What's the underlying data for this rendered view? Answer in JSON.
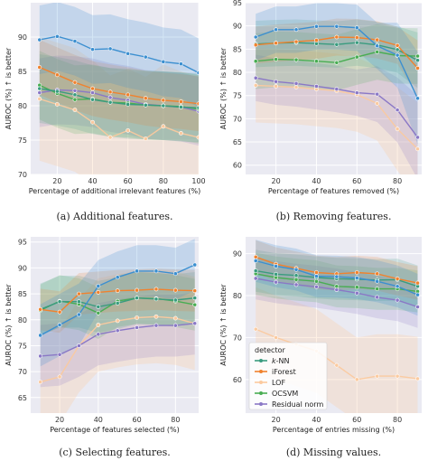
{
  "chart_data": [
    {
      "id": "a",
      "type": "line",
      "caption": "(a) Additional features.",
      "xlabel": "Percentage of additional irrelevant features (%)",
      "ylabel": "AUROC (%) ↑ is better",
      "xlim": [
        5,
        100
      ],
      "ylim": [
        70,
        95
      ],
      "xticks": [
        20,
        40,
        60,
        80,
        100
      ],
      "yticks": [
        70,
        75,
        80,
        85,
        90
      ],
      "grid": true,
      "x": [
        10,
        20,
        30,
        40,
        50,
        60,
        70,
        80,
        90,
        100
      ],
      "series": [
        {
          "key": "knn",
          "values": [
            82.5,
            82.1,
            81.6,
            80.9,
            80.5,
            80.2,
            80.1,
            80.0,
            79.8,
            79.7
          ],
          "band": [
            5,
            5,
            5,
            5,
            5,
            5,
            5,
            5,
            5,
            5
          ]
        },
        {
          "key": "iforest",
          "values": [
            85.6,
            84.5,
            83.4,
            82.5,
            82.0,
            81.6,
            81.1,
            80.8,
            80.6,
            80.3
          ],
          "band": [
            4,
            4,
            4,
            4,
            4,
            4,
            4,
            4,
            4,
            4
          ]
        },
        {
          "key": "lof",
          "values": [
            81.0,
            80.2,
            79.4,
            77.6,
            75.4,
            76.4,
            75.2,
            77.0,
            76.0,
            75.4
          ],
          "band": [
            9,
            9,
            9,
            9,
            9,
            9,
            9,
            9,
            9,
            9
          ]
        },
        {
          "key": "ocsvm",
          "values": [
            83.0,
            81.8,
            80.9,
            81.0,
            80.5,
            80.4,
            80.1,
            80.0,
            79.9,
            79.5
          ],
          "band": [
            5,
            5,
            5,
            5,
            5,
            5,
            5,
            5,
            5,
            5
          ]
        },
        {
          "key": "residual",
          "values": [
            81.9,
            82.3,
            82.2,
            81.9,
            81.2,
            80.8,
            80.2,
            80.0,
            79.8,
            79.2
          ],
          "band": [
            5,
            5,
            5,
            5,
            5,
            5,
            5,
            5,
            5,
            5
          ]
        },
        {
          "key": "top",
          "values": [
            89.6,
            90.1,
            89.4,
            88.2,
            88.3,
            87.6,
            87.1,
            86.4,
            86.1,
            84.8
          ],
          "band": [
            5,
            5,
            5,
            5,
            5,
            5,
            5,
            5,
            5,
            5
          ]
        }
      ]
    },
    {
      "id": "b",
      "type": "line",
      "caption": "(b) Removing features.",
      "xlabel": "Percentage of features removed (%)",
      "ylabel": "AUROC (%) ↑ is better",
      "xlim": [
        5,
        92
      ],
      "ylim": [
        58,
        95
      ],
      "xticks": [
        20,
        40,
        60,
        80
      ],
      "yticks": [
        60,
        65,
        70,
        75,
        80,
        85,
        90,
        95
      ],
      "grid": true,
      "x": [
        10,
        20,
        30,
        40,
        50,
        60,
        70,
        80,
        90
      ],
      "series": [
        {
          "key": "knn",
          "values": [
            86.1,
            86.3,
            86.4,
            86.2,
            86.0,
            86.4,
            85.9,
            84.9,
            82.6
          ],
          "band": [
            5,
            5,
            5,
            5,
            5,
            5,
            5,
            5,
            6
          ]
        },
        {
          "key": "iforest",
          "values": [
            85.9,
            86.3,
            86.6,
            86.9,
            87.6,
            87.5,
            87.0,
            85.8,
            80.9
          ],
          "band": [
            4,
            4,
            4,
            4,
            4,
            4,
            4,
            4,
            6
          ]
        },
        {
          "key": "lof",
          "values": [
            77.2,
            77.0,
            76.8,
            76.4,
            76.0,
            75.2,
            73.3,
            67.8,
            63.5
          ],
          "band": [
            8,
            8,
            8,
            8,
            8,
            8,
            8,
            9,
            10
          ]
        },
        {
          "key": "ocsvm",
          "values": [
            82.4,
            82.8,
            82.7,
            82.4,
            82.1,
            83.3,
            84.4,
            83.6,
            83.5
          ],
          "band": [
            6,
            6,
            6,
            6,
            6,
            6,
            6,
            6,
            6
          ]
        },
        {
          "key": "residual",
          "values": [
            78.8,
            78.0,
            77.6,
            77.0,
            76.4,
            75.6,
            75.3,
            71.9,
            66.0
          ],
          "band": [
            5,
            5,
            5,
            5,
            5,
            5,
            6,
            7,
            9
          ]
        },
        {
          "key": "top",
          "values": [
            87.6,
            89.2,
            89.2,
            89.9,
            89.9,
            89.6,
            85.7,
            83.7,
            74.4
          ],
          "band": [
            5,
            5,
            5,
            5,
            5,
            5,
            5,
            7,
            10
          ]
        }
      ]
    },
    {
      "id": "c",
      "type": "line",
      "caption": "(c) Selecting features.",
      "xlabel": "Percentage of features selected (%)",
      "ylabel": "AUROC (%) ↑ is better",
      "xlim": [
        5,
        92
      ],
      "ylim": [
        62,
        96
      ],
      "xticks": [
        20,
        40,
        60,
        80
      ],
      "yticks": [
        65,
        70,
        75,
        80,
        85,
        90,
        95
      ],
      "grid": true,
      "x": [
        10,
        20,
        30,
        40,
        50,
        60,
        70,
        80,
        90
      ],
      "series": [
        {
          "key": "knn",
          "values": [
            82.0,
            83.5,
            83.5,
            82.5,
            83.2,
            84.2,
            84.0,
            83.8,
            84.2
          ],
          "band": [
            5,
            5,
            5,
            5,
            5,
            5,
            5,
            5,
            5
          ]
        },
        {
          "key": "iforest",
          "values": [
            82.0,
            81.5,
            85.0,
            85.3,
            85.6,
            85.7,
            85.9,
            85.7,
            85.6
          ],
          "band": [
            4,
            4,
            4,
            4,
            4,
            4,
            4,
            4,
            4
          ]
        },
        {
          "key": "lof",
          "values": [
            68.0,
            69.0,
            75.0,
            79.0,
            79.8,
            80.4,
            80.6,
            80.3,
            79.3
          ],
          "band": [
            9,
            9,
            9,
            9,
            9,
            9,
            9,
            9,
            9
          ]
        },
        {
          "key": "ocsvm",
          "values": [
            81.8,
            83.6,
            83.0,
            81.3,
            83.6,
            84.2,
            84.1,
            83.6,
            82.9
          ],
          "band": [
            5,
            5,
            5,
            5,
            5,
            5,
            5,
            5,
            5
          ]
        },
        {
          "key": "residual",
          "values": [
            73.0,
            73.3,
            75.0,
            77.2,
            77.9,
            78.5,
            78.9,
            78.9,
            79.3
          ],
          "band": [
            6,
            6,
            6,
            6,
            6,
            6,
            6,
            6,
            6
          ]
        },
        {
          "key": "top",
          "values": [
            77.0,
            79.0,
            81.0,
            86.5,
            88.2,
            89.4,
            89.4,
            88.9,
            90.6
          ],
          "band": [
            6,
            6,
            6,
            5,
            5,
            5,
            5,
            5,
            5
          ]
        }
      ]
    },
    {
      "id": "d",
      "type": "line",
      "caption": "(d) Missing values.",
      "xlabel": "Percentage of entries missing (%)",
      "ylabel": "AUROC (%) ↑ is better",
      "xlim": [
        5,
        92
      ],
      "ylim": [
        52,
        94
      ],
      "xticks": [
        20,
        40,
        60,
        80
      ],
      "yticks": [
        60,
        70,
        80,
        90
      ],
      "grid": true,
      "x": [
        10,
        20,
        30,
        40,
        50,
        60,
        70,
        80,
        90
      ],
      "series": [
        {
          "key": "knn",
          "values": [
            85.9,
            85.1,
            84.8,
            84.3,
            84.0,
            83.9,
            83.7,
            83.8,
            82.2
          ],
          "band": [
            5,
            5,
            5,
            5,
            5,
            5,
            5,
            5,
            5
          ]
        },
        {
          "key": "iforest",
          "values": [
            89.2,
            87.5,
            86.5,
            85.5,
            85.2,
            85.5,
            85.2,
            84.0,
            83.0
          ],
          "band": [
            4,
            4,
            4,
            4,
            4,
            4,
            4,
            4,
            4
          ]
        },
        {
          "key": "lof",
          "values": [
            72.0,
            70.0,
            68.4,
            66.8,
            63.4,
            60.0,
            60.8,
            60.8,
            60.2
          ],
          "band": [
            10,
            10,
            10,
            10,
            10,
            10,
            10,
            10,
            10
          ]
        },
        {
          "key": "ocsvm",
          "values": [
            85.2,
            84.3,
            83.8,
            83.4,
            82.2,
            82.0,
            81.6,
            81.6,
            81.0
          ],
          "band": [
            5,
            5,
            5,
            5,
            5,
            5,
            5,
            5,
            5
          ]
        },
        {
          "key": "residual",
          "values": [
            84.1,
            83.2,
            82.6,
            82.1,
            81.4,
            80.6,
            79.6,
            78.9,
            77.3
          ],
          "band": [
            5,
            5,
            5,
            5,
            5,
            5,
            5,
            5,
            5
          ]
        },
        {
          "key": "top",
          "values": [
            88.3,
            87.0,
            86.2,
            84.6,
            84.5,
            84.2,
            83.4,
            82.2,
            80.2
          ],
          "band": [
            5,
            5,
            5,
            5,
            5,
            5,
            5,
            5,
            5
          ]
        }
      ],
      "legend": {
        "title": "detector",
        "placement": "lower-left",
        "entries": [
          {
            "key": "knn",
            "label": "k-NN"
          },
          {
            "key": "iforest",
            "label": "iForest"
          },
          {
            "key": "lof",
            "label": "LOF"
          },
          {
            "key": "ocsvm",
            "label": "OCSVM"
          },
          {
            "key": "residual",
            "label": "Residual norm"
          }
        ]
      }
    }
  ],
  "series_colors": {
    "top": "#3b8fd0",
    "knn": "#3a9c7f",
    "iforest": "#f0822e",
    "lof": "#fbc99e",
    "ocsvm": "#49ad53",
    "residual": "#8a78c6"
  },
  "panel_background": "#eaeaf2",
  "grid_color": "#ffffff"
}
